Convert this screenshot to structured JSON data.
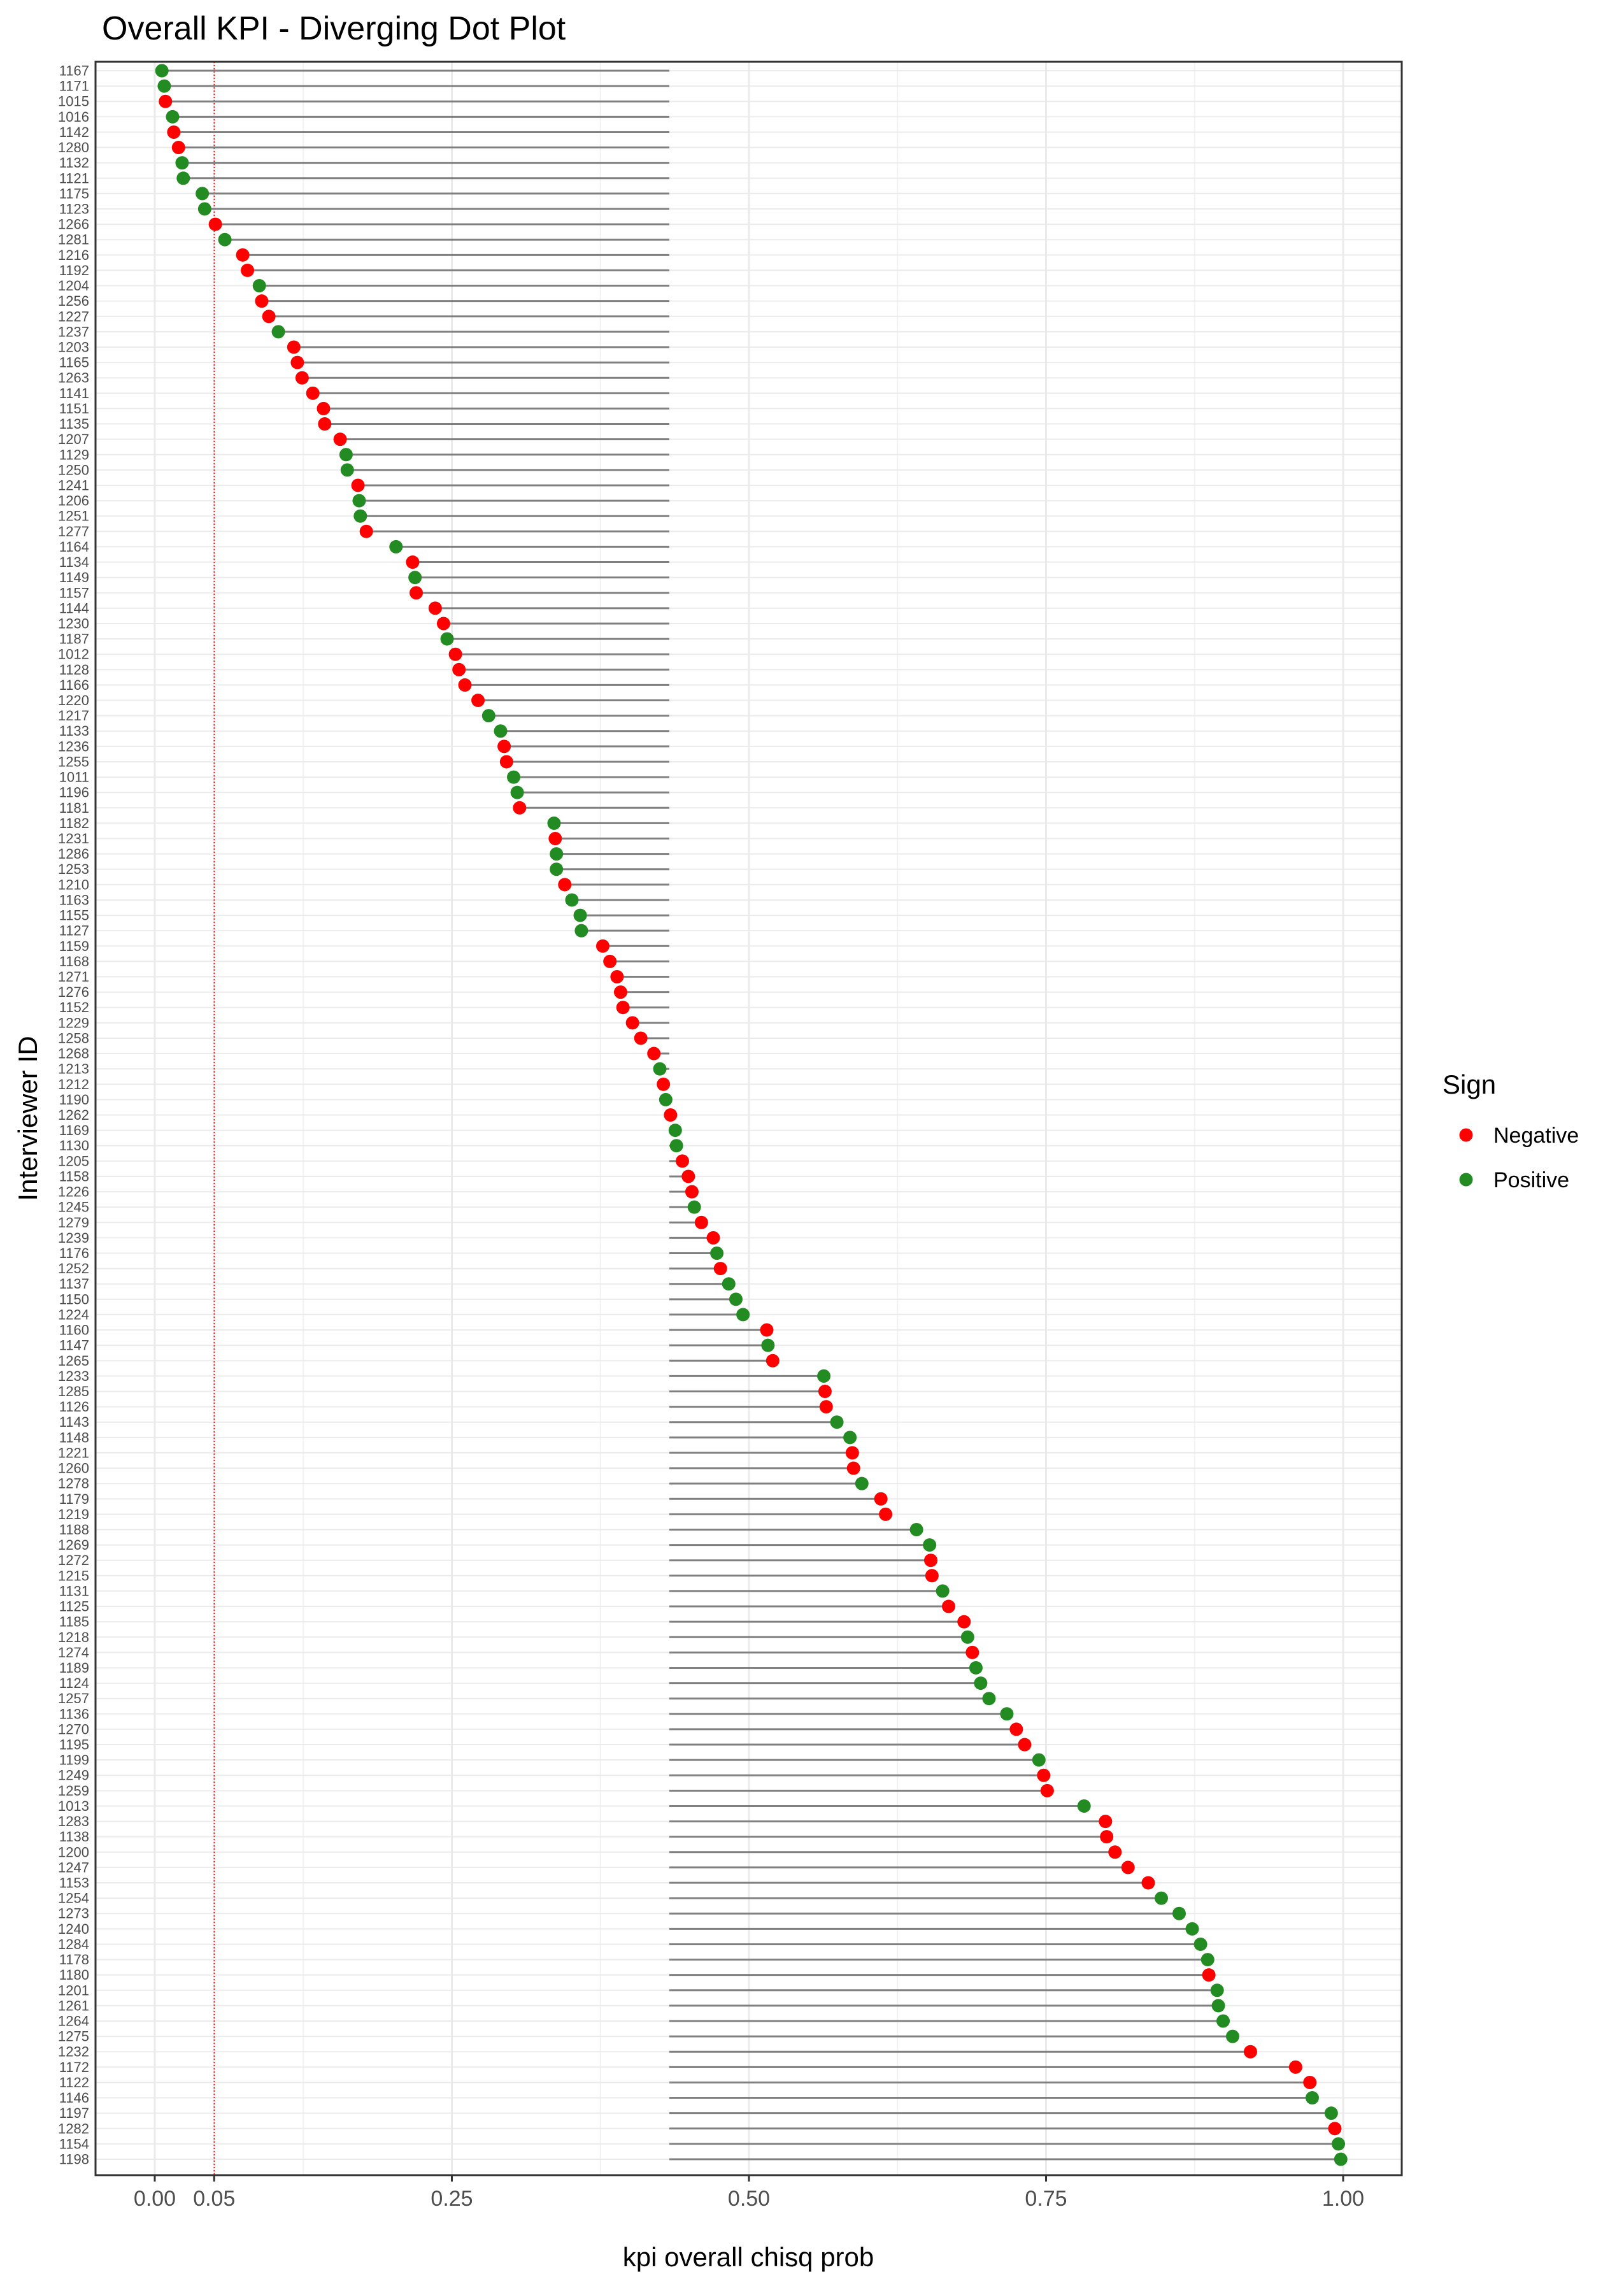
{
  "chart_data": {
    "type": "scatter",
    "subtype": "diverging dot plot",
    "title": "Overall KPI - Diverging Dot Plot",
    "xlabel": "kpi overall chisq prob",
    "ylabel": "Interviewer ID",
    "xlim": [
      0,
      1
    ],
    "x_ticks": [
      {
        "value": 0.0,
        "label": "0.00"
      },
      {
        "value": 0.05,
        "label": "0.05"
      },
      {
        "value": 0.25,
        "label": "0.25"
      },
      {
        "value": 0.5,
        "label": "0.50"
      },
      {
        "value": 0.75,
        "label": "0.75"
      },
      {
        "value": 1.0,
        "label": "1.00"
      }
    ],
    "reference_line": {
      "x": 0.05,
      "color": "#ff0000",
      "style": "dotted"
    },
    "segment_anchor_x": 0.433,
    "segment_color": "#808080",
    "grid": true,
    "legend": {
      "title": "Sign",
      "position": "right",
      "entries": [
        {
          "name": "Negative",
          "color": "#ff0000"
        },
        {
          "name": "Positive",
          "color": "#228b22"
        }
      ]
    },
    "points": [
      {
        "id": "1167",
        "x": 0.006,
        "sign": "Positive"
      },
      {
        "id": "1171",
        "x": 0.008,
        "sign": "Positive"
      },
      {
        "id": "1015",
        "x": 0.009,
        "sign": "Negative"
      },
      {
        "id": "1016",
        "x": 0.015,
        "sign": "Positive"
      },
      {
        "id": "1142",
        "x": 0.016,
        "sign": "Negative"
      },
      {
        "id": "1280",
        "x": 0.02,
        "sign": "Negative"
      },
      {
        "id": "1132",
        "x": 0.023,
        "sign": "Positive"
      },
      {
        "id": "1121",
        "x": 0.024,
        "sign": "Positive"
      },
      {
        "id": "1175",
        "x": 0.04,
        "sign": "Positive"
      },
      {
        "id": "1123",
        "x": 0.042,
        "sign": "Positive"
      },
      {
        "id": "1266",
        "x": 0.051,
        "sign": "Negative"
      },
      {
        "id": "1281",
        "x": 0.059,
        "sign": "Positive"
      },
      {
        "id": "1216",
        "x": 0.074,
        "sign": "Negative"
      },
      {
        "id": "1192",
        "x": 0.078,
        "sign": "Negative"
      },
      {
        "id": "1204",
        "x": 0.088,
        "sign": "Positive"
      },
      {
        "id": "1256",
        "x": 0.09,
        "sign": "Negative"
      },
      {
        "id": "1227",
        "x": 0.096,
        "sign": "Negative"
      },
      {
        "id": "1237",
        "x": 0.104,
        "sign": "Positive"
      },
      {
        "id": "1203",
        "x": 0.117,
        "sign": "Negative"
      },
      {
        "id": "1165",
        "x": 0.12,
        "sign": "Negative"
      },
      {
        "id": "1263",
        "x": 0.124,
        "sign": "Negative"
      },
      {
        "id": "1141",
        "x": 0.133,
        "sign": "Negative"
      },
      {
        "id": "1151",
        "x": 0.142,
        "sign": "Negative"
      },
      {
        "id": "1135",
        "x": 0.143,
        "sign": "Negative"
      },
      {
        "id": "1207",
        "x": 0.156,
        "sign": "Negative"
      },
      {
        "id": "1129",
        "x": 0.161,
        "sign": "Positive"
      },
      {
        "id": "1250",
        "x": 0.162,
        "sign": "Positive"
      },
      {
        "id": "1241",
        "x": 0.171,
        "sign": "Negative"
      },
      {
        "id": "1206",
        "x": 0.172,
        "sign": "Positive"
      },
      {
        "id": "1251",
        "x": 0.173,
        "sign": "Positive"
      },
      {
        "id": "1277",
        "x": 0.178,
        "sign": "Negative"
      },
      {
        "id": "1164",
        "x": 0.203,
        "sign": "Positive"
      },
      {
        "id": "1134",
        "x": 0.217,
        "sign": "Negative"
      },
      {
        "id": "1149",
        "x": 0.219,
        "sign": "Positive"
      },
      {
        "id": "1157",
        "x": 0.22,
        "sign": "Negative"
      },
      {
        "id": "1144",
        "x": 0.236,
        "sign": "Negative"
      },
      {
        "id": "1230",
        "x": 0.243,
        "sign": "Negative"
      },
      {
        "id": "1187",
        "x": 0.246,
        "sign": "Positive"
      },
      {
        "id": "1012",
        "x": 0.253,
        "sign": "Negative"
      },
      {
        "id": "1128",
        "x": 0.256,
        "sign": "Negative"
      },
      {
        "id": "1166",
        "x": 0.261,
        "sign": "Negative"
      },
      {
        "id": "1220",
        "x": 0.272,
        "sign": "Negative"
      },
      {
        "id": "1217",
        "x": 0.281,
        "sign": "Positive"
      },
      {
        "id": "1133",
        "x": 0.291,
        "sign": "Positive"
      },
      {
        "id": "1236",
        "x": 0.294,
        "sign": "Negative"
      },
      {
        "id": "1255",
        "x": 0.296,
        "sign": "Negative"
      },
      {
        "id": "1011",
        "x": 0.302,
        "sign": "Positive"
      },
      {
        "id": "1196",
        "x": 0.305,
        "sign": "Positive"
      },
      {
        "id": "1181",
        "x": 0.307,
        "sign": "Negative"
      },
      {
        "id": "1182",
        "x": 0.336,
        "sign": "Positive"
      },
      {
        "id": "1231",
        "x": 0.337,
        "sign": "Negative"
      },
      {
        "id": "1286",
        "x": 0.338,
        "sign": "Positive"
      },
      {
        "id": "1253",
        "x": 0.338,
        "sign": "Positive"
      },
      {
        "id": "1210",
        "x": 0.345,
        "sign": "Negative"
      },
      {
        "id": "1163",
        "x": 0.351,
        "sign": "Positive"
      },
      {
        "id": "1155",
        "x": 0.358,
        "sign": "Positive"
      },
      {
        "id": "1127",
        "x": 0.359,
        "sign": "Positive"
      },
      {
        "id": "1159",
        "x": 0.377,
        "sign": "Negative"
      },
      {
        "id": "1168",
        "x": 0.383,
        "sign": "Negative"
      },
      {
        "id": "1271",
        "x": 0.389,
        "sign": "Negative"
      },
      {
        "id": "1276",
        "x": 0.392,
        "sign": "Negative"
      },
      {
        "id": "1152",
        "x": 0.394,
        "sign": "Negative"
      },
      {
        "id": "1229",
        "x": 0.402,
        "sign": "Negative"
      },
      {
        "id": "1258",
        "x": 0.409,
        "sign": "Negative"
      },
      {
        "id": "1268",
        "x": 0.42,
        "sign": "Negative"
      },
      {
        "id": "1213",
        "x": 0.425,
        "sign": "Positive"
      },
      {
        "id": "1212",
        "x": 0.428,
        "sign": "Negative"
      },
      {
        "id": "1190",
        "x": 0.43,
        "sign": "Positive"
      },
      {
        "id": "1262",
        "x": 0.434,
        "sign": "Negative"
      },
      {
        "id": "1169",
        "x": 0.438,
        "sign": "Positive"
      },
      {
        "id": "1130",
        "x": 0.439,
        "sign": "Positive"
      },
      {
        "id": "1205",
        "x": 0.444,
        "sign": "Negative"
      },
      {
        "id": "1158",
        "x": 0.449,
        "sign": "Negative"
      },
      {
        "id": "1226",
        "x": 0.452,
        "sign": "Negative"
      },
      {
        "id": "1245",
        "x": 0.454,
        "sign": "Positive"
      },
      {
        "id": "1279",
        "x": 0.46,
        "sign": "Negative"
      },
      {
        "id": "1239",
        "x": 0.47,
        "sign": "Negative"
      },
      {
        "id": "1176",
        "x": 0.473,
        "sign": "Positive"
      },
      {
        "id": "1252",
        "x": 0.476,
        "sign": "Negative"
      },
      {
        "id": "1137",
        "x": 0.483,
        "sign": "Positive"
      },
      {
        "id": "1150",
        "x": 0.489,
        "sign": "Positive"
      },
      {
        "id": "1224",
        "x": 0.495,
        "sign": "Positive"
      },
      {
        "id": "1160",
        "x": 0.515,
        "sign": "Negative"
      },
      {
        "id": "1147",
        "x": 0.516,
        "sign": "Positive"
      },
      {
        "id": "1265",
        "x": 0.52,
        "sign": "Negative"
      },
      {
        "id": "1233",
        "x": 0.563,
        "sign": "Positive"
      },
      {
        "id": "1285",
        "x": 0.564,
        "sign": "Negative"
      },
      {
        "id": "1126",
        "x": 0.565,
        "sign": "Negative"
      },
      {
        "id": "1143",
        "x": 0.574,
        "sign": "Positive"
      },
      {
        "id": "1148",
        "x": 0.585,
        "sign": "Positive"
      },
      {
        "id": "1221",
        "x": 0.587,
        "sign": "Negative"
      },
      {
        "id": "1260",
        "x": 0.588,
        "sign": "Negative"
      },
      {
        "id": "1278",
        "x": 0.595,
        "sign": "Positive"
      },
      {
        "id": "1179",
        "x": 0.611,
        "sign": "Negative"
      },
      {
        "id": "1219",
        "x": 0.615,
        "sign": "Negative"
      },
      {
        "id": "1188",
        "x": 0.641,
        "sign": "Positive"
      },
      {
        "id": "1269",
        "x": 0.652,
        "sign": "Positive"
      },
      {
        "id": "1272",
        "x": 0.653,
        "sign": "Negative"
      },
      {
        "id": "1215",
        "x": 0.654,
        "sign": "Negative"
      },
      {
        "id": "1131",
        "x": 0.663,
        "sign": "Positive"
      },
      {
        "id": "1125",
        "x": 0.668,
        "sign": "Negative"
      },
      {
        "id": "1185",
        "x": 0.681,
        "sign": "Negative"
      },
      {
        "id": "1218",
        "x": 0.684,
        "sign": "Positive"
      },
      {
        "id": "1274",
        "x": 0.688,
        "sign": "Negative"
      },
      {
        "id": "1189",
        "x": 0.691,
        "sign": "Positive"
      },
      {
        "id": "1124",
        "x": 0.695,
        "sign": "Positive"
      },
      {
        "id": "1257",
        "x": 0.702,
        "sign": "Positive"
      },
      {
        "id": "1136",
        "x": 0.717,
        "sign": "Positive"
      },
      {
        "id": "1270",
        "x": 0.725,
        "sign": "Negative"
      },
      {
        "id": "1195",
        "x": 0.732,
        "sign": "Negative"
      },
      {
        "id": "1199",
        "x": 0.744,
        "sign": "Positive"
      },
      {
        "id": "1249",
        "x": 0.748,
        "sign": "Negative"
      },
      {
        "id": "1259",
        "x": 0.751,
        "sign": "Negative"
      },
      {
        "id": "1013",
        "x": 0.782,
        "sign": "Positive"
      },
      {
        "id": "1283",
        "x": 0.8,
        "sign": "Negative"
      },
      {
        "id": "1138",
        "x": 0.801,
        "sign": "Negative"
      },
      {
        "id": "1200",
        "x": 0.808,
        "sign": "Negative"
      },
      {
        "id": "1247",
        "x": 0.819,
        "sign": "Negative"
      },
      {
        "id": "1153",
        "x": 0.836,
        "sign": "Negative"
      },
      {
        "id": "1254",
        "x": 0.847,
        "sign": "Positive"
      },
      {
        "id": "1273",
        "x": 0.862,
        "sign": "Positive"
      },
      {
        "id": "1240",
        "x": 0.873,
        "sign": "Positive"
      },
      {
        "id": "1284",
        "x": 0.88,
        "sign": "Positive"
      },
      {
        "id": "1178",
        "x": 0.886,
        "sign": "Positive"
      },
      {
        "id": "1180",
        "x": 0.887,
        "sign": "Negative"
      },
      {
        "id": "1201",
        "x": 0.894,
        "sign": "Positive"
      },
      {
        "id": "1261",
        "x": 0.895,
        "sign": "Positive"
      },
      {
        "id": "1264",
        "x": 0.899,
        "sign": "Positive"
      },
      {
        "id": "1275",
        "x": 0.907,
        "sign": "Positive"
      },
      {
        "id": "1232",
        "x": 0.922,
        "sign": "Negative"
      },
      {
        "id": "1172",
        "x": 0.96,
        "sign": "Negative"
      },
      {
        "id": "1122",
        "x": 0.972,
        "sign": "Negative"
      },
      {
        "id": "1146",
        "x": 0.974,
        "sign": "Positive"
      },
      {
        "id": "1197",
        "x": 0.99,
        "sign": "Positive"
      },
      {
        "id": "1282",
        "x": 0.993,
        "sign": "Negative"
      },
      {
        "id": "1154",
        "x": 0.996,
        "sign": "Positive"
      },
      {
        "id": "1198",
        "x": 0.998,
        "sign": "Positive"
      }
    ]
  }
}
